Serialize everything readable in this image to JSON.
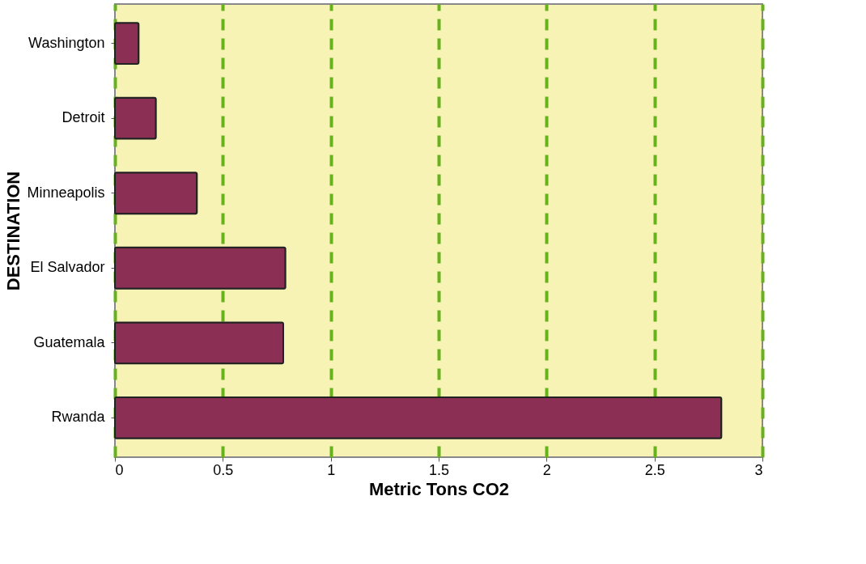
{
  "chart_data": {
    "type": "bar",
    "orientation": "horizontal",
    "xlabel": "Metric Tons CO2",
    "ylabel": "DESTINATION",
    "categories": [
      "Washington",
      "Detroit",
      "Minneapolis",
      "El Salvador",
      "Guatemala",
      "Rwanda"
    ],
    "values": [
      0.11,
      0.19,
      0.38,
      0.79,
      0.78,
      2.81
    ],
    "color": "#8c2f55",
    "xlim": [
      0,
      3
    ],
    "xticks": [
      0,
      0.5,
      1,
      1.5,
      2,
      2.5,
      3
    ],
    "grid": "x",
    "line_style": "dashed"
  }
}
